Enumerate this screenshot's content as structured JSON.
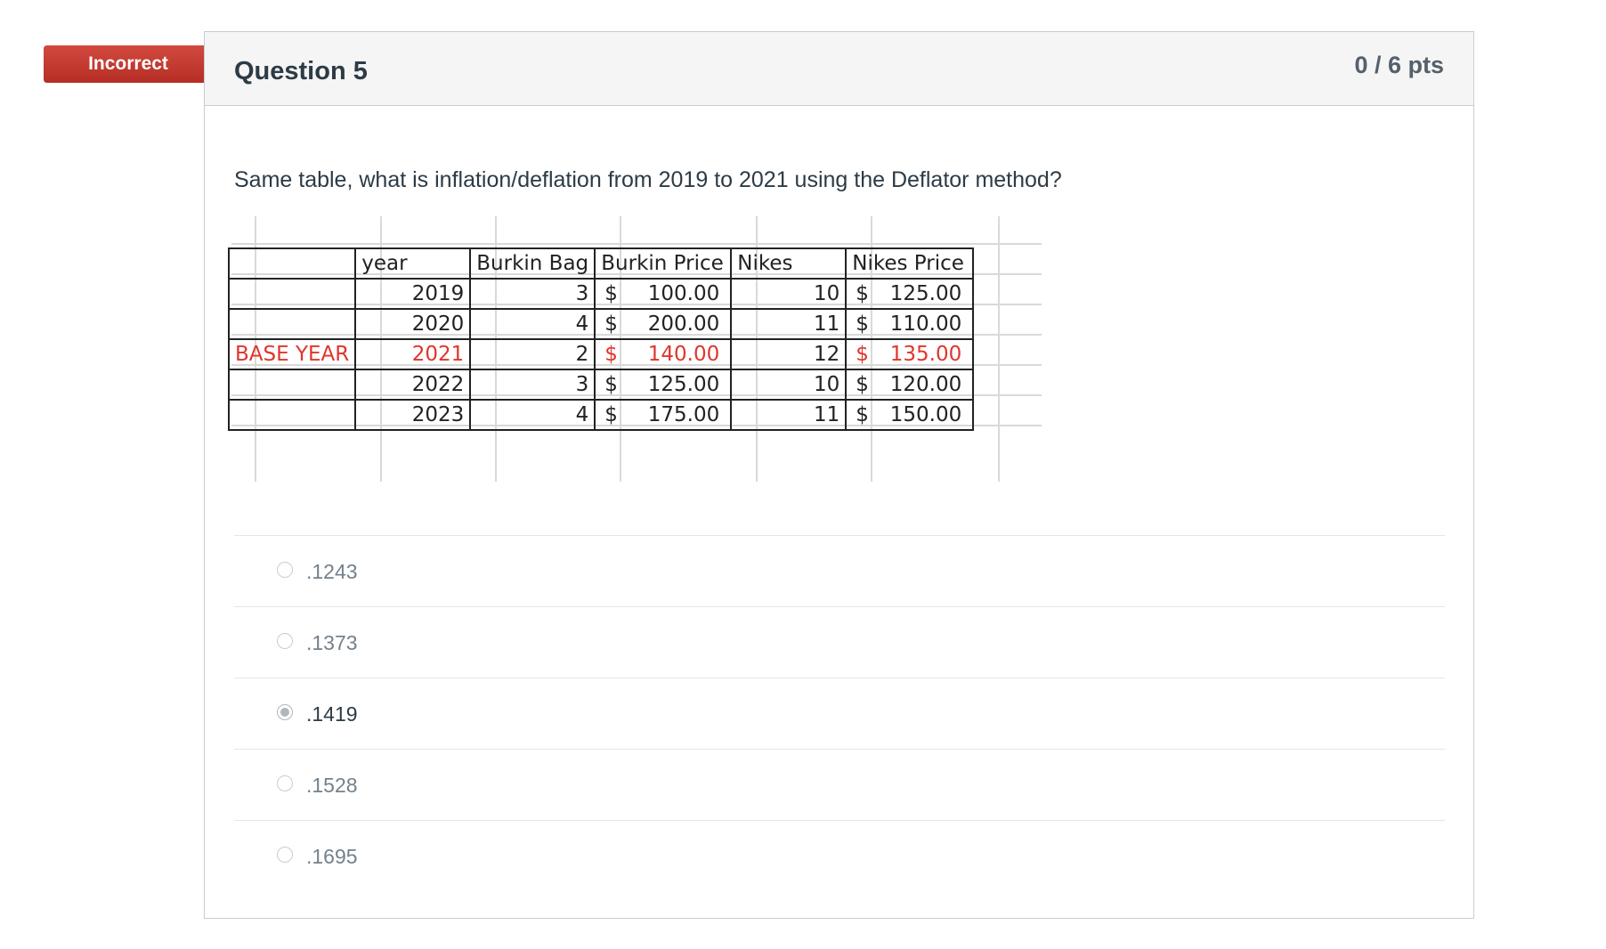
{
  "status_badge": "Incorrect",
  "question": {
    "title": "Question 5",
    "points": "0 / 6 pts",
    "text": "Same table, what is inflation/deflation from 2019 to 2021 using the Deflator method?"
  },
  "table": {
    "headers": [
      "",
      "year",
      "Burkin Bag",
      "Burkin Price",
      "Nikes",
      "Nikes Price"
    ],
    "rows": [
      {
        "label": "",
        "year": "2019",
        "bag": "3",
        "bag_price": "100.00",
        "nikes": "10",
        "nikes_price": "125.00"
      },
      {
        "label": "",
        "year": "2020",
        "bag": "4",
        "bag_price": "200.00",
        "nikes": "11",
        "nikes_price": "110.00"
      },
      {
        "label": "BASE YEAR",
        "year": "2021",
        "bag": "2",
        "bag_price": "140.00",
        "nikes": "12",
        "nikes_price": "135.00"
      },
      {
        "label": "",
        "year": "2022",
        "bag": "3",
        "bag_price": "125.00",
        "nikes": "10",
        "nikes_price": "120.00"
      },
      {
        "label": "",
        "year": "2023",
        "bag": "4",
        "bag_price": "175.00",
        "nikes": "11",
        "nikes_price": "150.00"
      }
    ],
    "currency_symbol": "$",
    "highlight_color": "#e0352b"
  },
  "answers": [
    {
      "label": ".1243",
      "selected": false
    },
    {
      "label": ".1373",
      "selected": false
    },
    {
      "label": ".1419",
      "selected": true
    },
    {
      "label": ".1528",
      "selected": false
    },
    {
      "label": ".1695",
      "selected": false
    }
  ],
  "colors": {
    "badge": "#c2372d",
    "header_bg": "#f5f5f5"
  }
}
